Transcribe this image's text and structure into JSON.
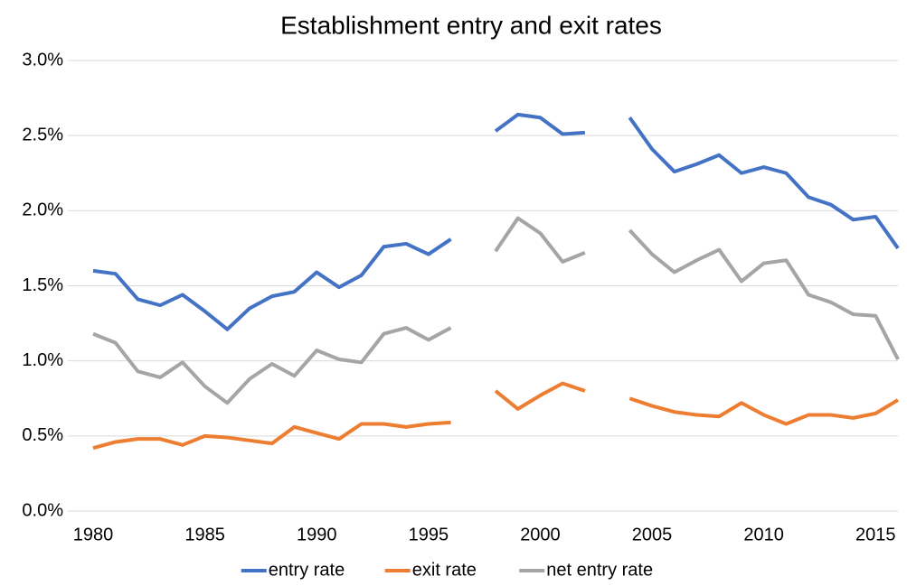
{
  "chart_data": {
    "type": "line",
    "title": "Establishment entry and exit rates",
    "x": [
      1980,
      1981,
      1982,
      1983,
      1984,
      1985,
      1986,
      1987,
      1988,
      1989,
      1990,
      1991,
      1992,
      1993,
      1994,
      1995,
      1996,
      1997,
      1998,
      1999,
      2000,
      2001,
      2002,
      2003,
      2004,
      2005,
      2006,
      2007,
      2008,
      2009,
      2010,
      2011,
      2012,
      2013,
      2014,
      2015,
      2016
    ],
    "series": [
      {
        "name": "entry rate",
        "color": "#4472c4",
        "values": [
          1.6,
          1.58,
          1.41,
          1.37,
          1.44,
          1.33,
          1.21,
          1.35,
          1.43,
          1.46,
          1.59,
          1.49,
          1.57,
          1.76,
          1.78,
          1.71,
          1.81,
          null,
          2.53,
          2.64,
          2.62,
          2.51,
          2.52,
          null,
          2.62,
          2.41,
          2.26,
          2.31,
          2.37,
          2.25,
          2.29,
          2.25,
          2.09,
          2.04,
          1.94,
          1.96,
          1.75
        ]
      },
      {
        "name": "exit rate",
        "color": "#ed7d31",
        "values": [
          0.42,
          0.46,
          0.48,
          0.48,
          0.44,
          0.5,
          0.49,
          0.47,
          0.45,
          0.56,
          0.52,
          0.48,
          0.58,
          0.58,
          0.56,
          0.58,
          0.59,
          null,
          0.8,
          0.68,
          0.77,
          0.85,
          0.8,
          null,
          0.75,
          0.7,
          0.66,
          0.64,
          0.63,
          0.72,
          0.64,
          0.58,
          0.64,
          0.64,
          0.62,
          0.65,
          0.74
        ]
      },
      {
        "name": "net entry rate",
        "color": "#a5a5a5",
        "values": [
          1.18,
          1.12,
          0.93,
          0.89,
          0.99,
          0.83,
          0.72,
          0.88,
          0.98,
          0.9,
          1.07,
          1.01,
          0.99,
          1.18,
          1.22,
          1.14,
          1.22,
          null,
          1.73,
          1.95,
          1.85,
          1.66,
          1.72,
          null,
          1.87,
          1.71,
          1.59,
          1.67,
          1.74,
          1.53,
          1.65,
          1.67,
          1.44,
          1.39,
          1.31,
          1.3,
          1.01
        ]
      }
    ],
    "xlim": [
      1980,
      2016
    ],
    "xticks": [
      1980,
      1985,
      1990,
      1995,
      2000,
      2005,
      2010,
      2015
    ],
    "ylim": [
      0,
      3
    ],
    "yticks": [
      {
        "value": 0,
        "label": "0.0%"
      },
      {
        "value": 0.5,
        "label": "0.5%"
      },
      {
        "value": 1,
        "label": "1.0%"
      },
      {
        "value": 1.5,
        "label": "1.5%"
      },
      {
        "value": 2,
        "label": "2.0%"
      },
      {
        "value": 2.5,
        "label": "2.5%"
      },
      {
        "value": 3,
        "label": "3.0%"
      }
    ],
    "grid": true,
    "legend": "bottom"
  }
}
